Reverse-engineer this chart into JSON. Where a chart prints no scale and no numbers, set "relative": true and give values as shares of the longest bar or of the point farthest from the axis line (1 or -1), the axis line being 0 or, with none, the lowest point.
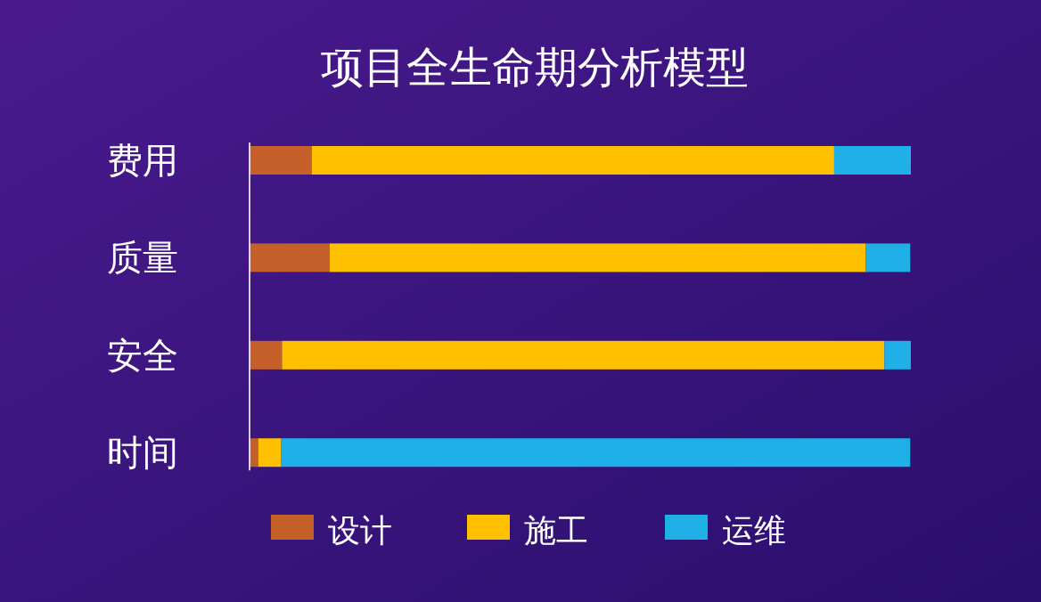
{
  "chart_data": {
    "type": "bar",
    "title": "项目全生命期分析模型",
    "orientation": "horizontal",
    "stacked": true,
    "relative": true,
    "legend": "bottom",
    "categories": [
      "费用",
      "质量",
      "安全",
      "时间"
    ],
    "series": [
      {
        "name": "设计",
        "color": "#c5602a",
        "values": [
          0.094,
          0.121,
          0.049,
          0.013
        ]
      },
      {
        "name": "施工",
        "color": "#ffc000",
        "values": [
          0.79,
          0.811,
          0.911,
          0.035
        ]
      },
      {
        "name": "运维",
        "color": "#1eb0e6",
        "values": [
          0.116,
          0.067,
          0.04,
          0.951
        ]
      }
    ]
  }
}
